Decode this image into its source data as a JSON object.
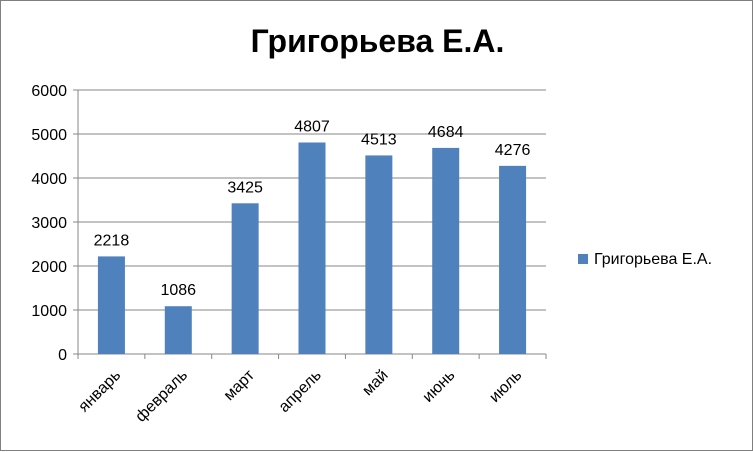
{
  "chart_data": {
    "type": "bar",
    "title": "Григорьева Е.А.",
    "categories": [
      "январь",
      "февраль",
      "март",
      "апрель",
      "май",
      "июнь",
      "июль"
    ],
    "series": [
      {
        "name": "Григорьева Е.А.",
        "values": [
          2218,
          1086,
          3425,
          4807,
          4513,
          4684,
          4276
        ],
        "color": "#4f81bd"
      }
    ],
    "ylim": [
      0,
      6000
    ],
    "yticks": [
      0,
      1000,
      2000,
      3000,
      4000,
      5000,
      6000
    ],
    "grid": true,
    "legend": "right",
    "data_labels": true
  }
}
